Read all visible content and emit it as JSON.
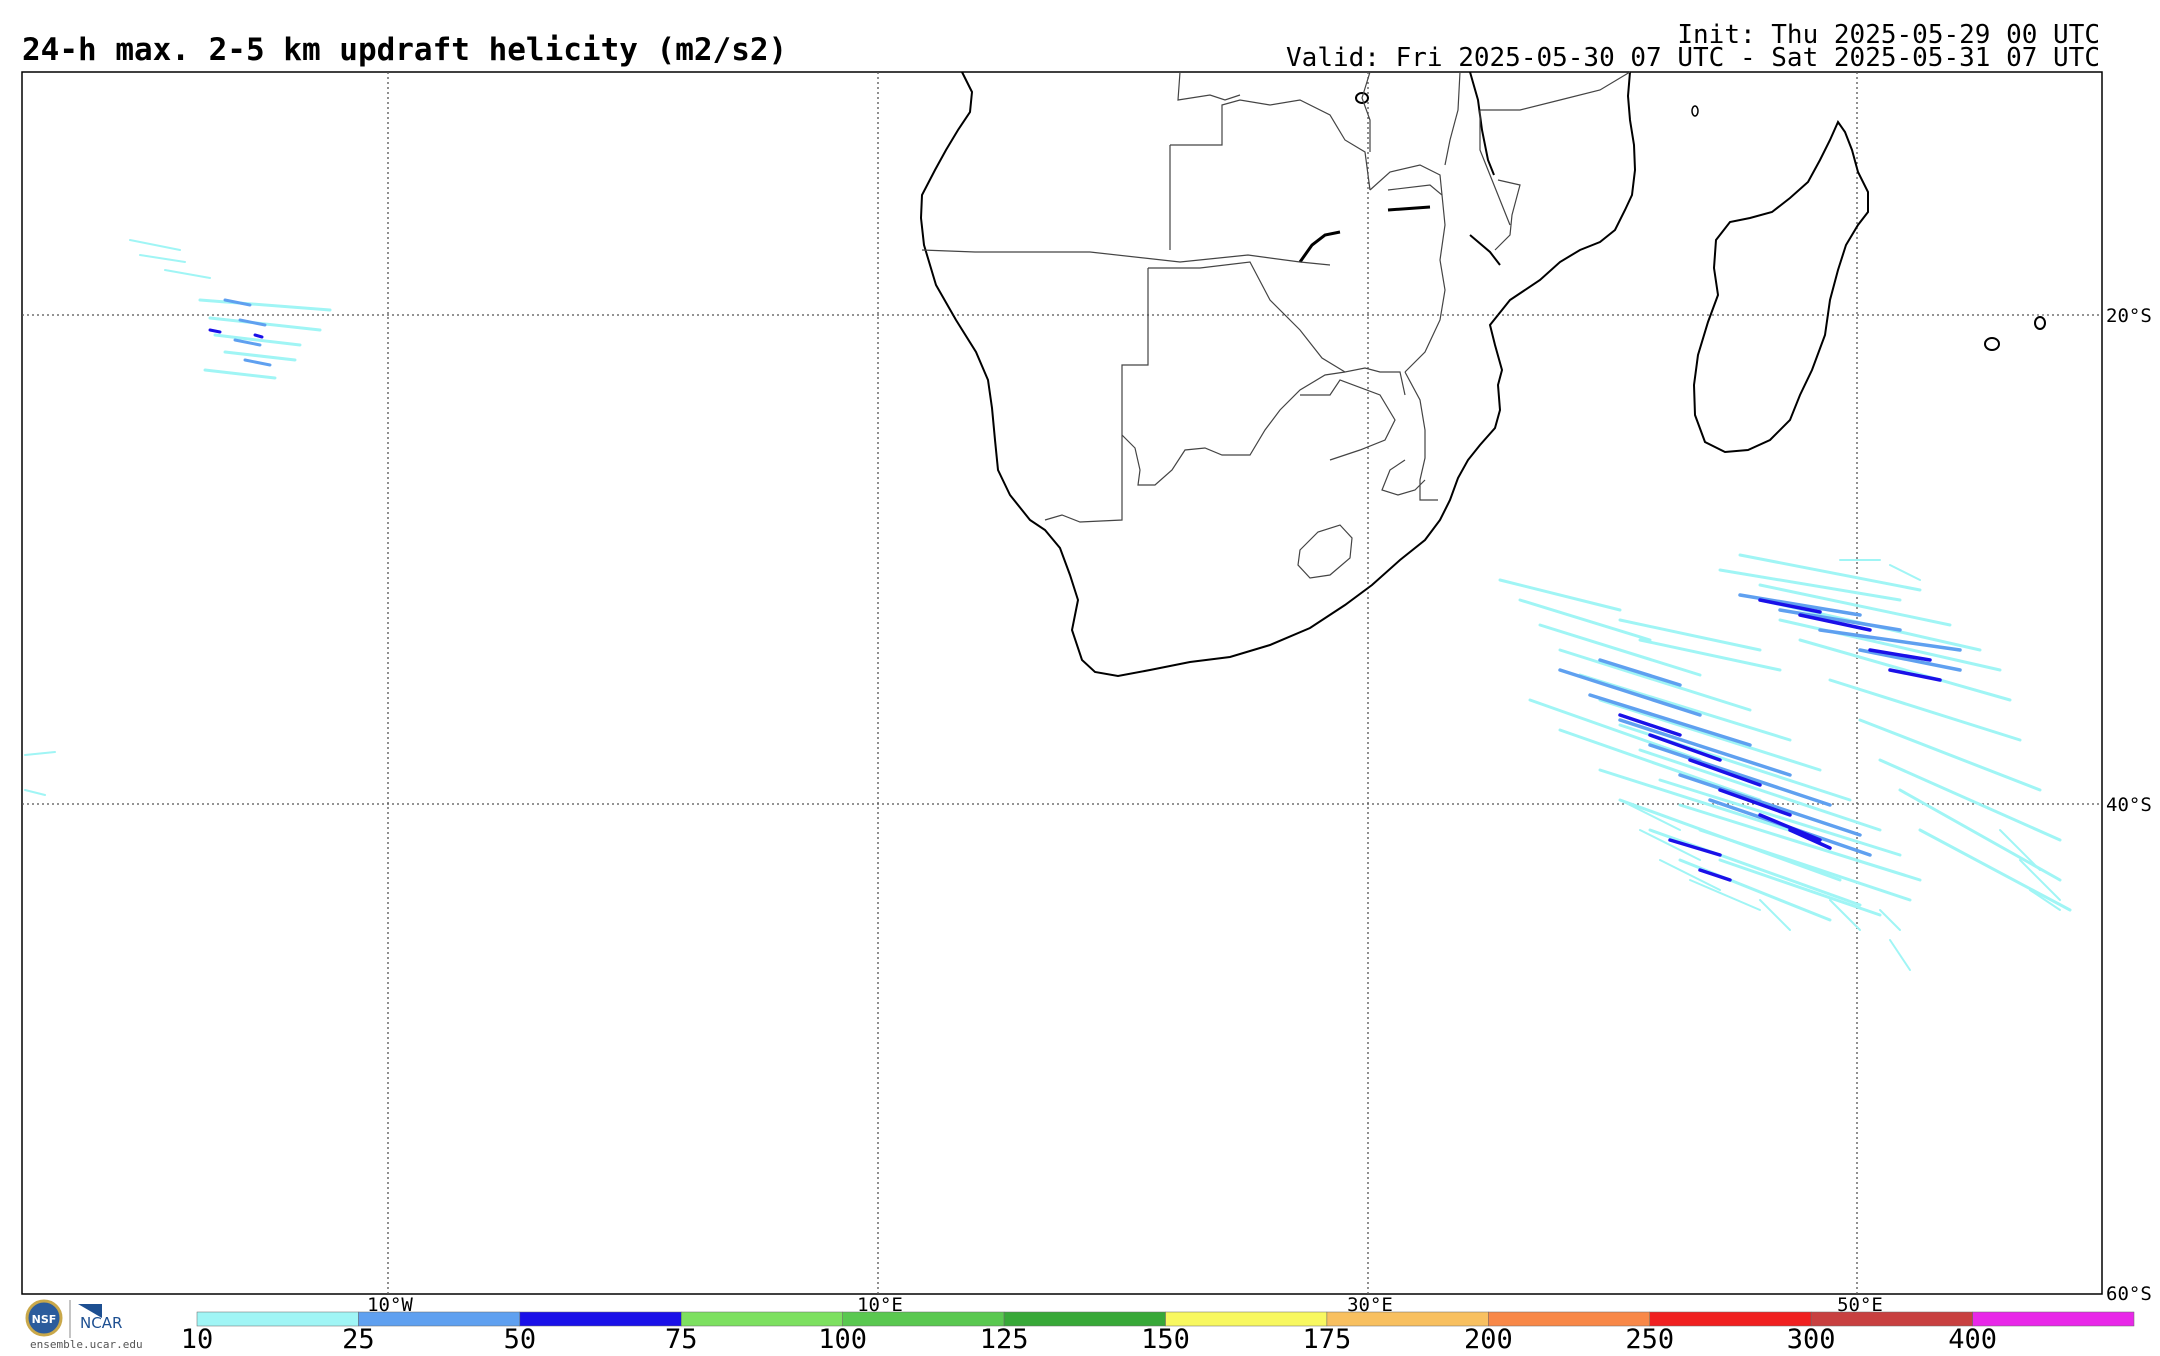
{
  "header": {
    "title": "24-h max. 2-5 km updraft helicity (m2/s2)",
    "init": "Init: Thu 2025-05-29 00 UTC",
    "valid": "Valid: Fri 2025-05-30 07 UTC - Sat 2025-05-31 07 UTC"
  },
  "grid": {
    "lon_labels": [
      "10°W",
      "10°E",
      "30°E",
      "50°E"
    ],
    "lat_labels": [
      "20°S",
      "40°S",
      "60°S"
    ]
  },
  "colorbar": {
    "ticks": [
      "10",
      "25",
      "50",
      "75",
      "100",
      "125",
      "150",
      "175",
      "200",
      "250",
      "300",
      "400"
    ],
    "colors": [
      "#a0f5f5",
      "#5fa0f0",
      "#1a10e8",
      "#7de060",
      "#5ac850",
      "#38a838",
      "#f8f860",
      "#f8c060",
      "#f88848",
      "#f02020",
      "#c84040",
      "#e828e8"
    ]
  },
  "branding": {
    "org_label": "NCAR",
    "site": "ensemble.ucar.edu"
  }
}
